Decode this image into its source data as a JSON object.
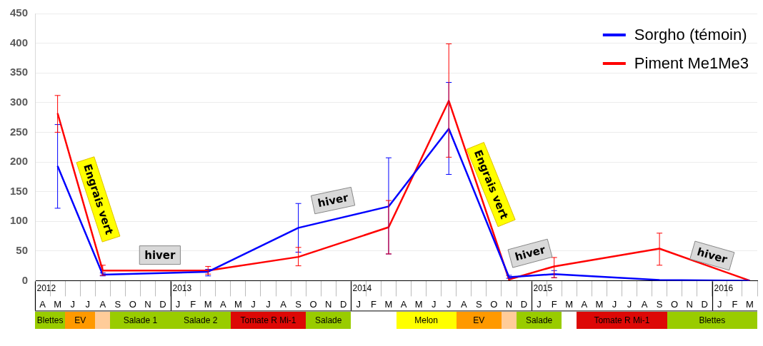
{
  "chart_data": {
    "type": "line",
    "marker": "none",
    "grid": "y",
    "legend": "top right",
    "categories": [
      "A",
      "M",
      "J",
      "J",
      "A",
      "S",
      "O",
      "N",
      "D",
      "J",
      "F",
      "M",
      "A",
      "M",
      "J",
      "J",
      "A",
      "S",
      "O",
      "N",
      "D",
      "J",
      "F",
      "M",
      "A",
      "M",
      "J",
      "J",
      "A",
      "S",
      "O",
      "N",
      "D",
      "J",
      "F",
      "M",
      "A",
      "M",
      "J",
      "J",
      "A",
      "S",
      "O",
      "N",
      "D",
      "J",
      "F",
      "M"
    ],
    "ylim": [
      0,
      450
    ],
    "yticks": [
      0,
      50,
      100,
      150,
      200,
      250,
      300,
      350,
      400,
      450
    ],
    "series": [
      {
        "name": "Sorgho (témoin)",
        "color": "#0000ff",
        "values": [
          null,
          193,
          null,
          null,
          10,
          null,
          null,
          null,
          null,
          null,
          null,
          15,
          null,
          null,
          null,
          null,
          null,
          89,
          null,
          null,
          null,
          null,
          null,
          125,
          null,
          null,
          null,
          256,
          null,
          null,
          null,
          6,
          null,
          null,
          11,
          null,
          null,
          null,
          null,
          null,
          null,
          1,
          null,
          null,
          null,
          null,
          null,
          0
        ],
        "errors": [
          null,
          [
            122,
            263
          ],
          null,
          null,
          [
            8,
            13
          ],
          null,
          null,
          null,
          null,
          null,
          null,
          [
            8,
            19
          ],
          null,
          null,
          null,
          null,
          null,
          [
            48,
            130
          ],
          null,
          null,
          null,
          null,
          null,
          [
            45,
            207
          ],
          null,
          null,
          null,
          [
            179,
            334
          ],
          null,
          null,
          null,
          [
            4,
            9
          ],
          null,
          null,
          [
            5,
            17
          ],
          null,
          null,
          null,
          null,
          null,
          null,
          null,
          null,
          null,
          null,
          null,
          null,
          null
        ]
      },
      {
        "name": "Piment Me1Me3",
        "color": "#ff0000",
        "values": [
          null,
          282,
          null,
          null,
          17,
          null,
          null,
          null,
          null,
          null,
          null,
          17,
          null,
          null,
          null,
          null,
          null,
          40,
          null,
          null,
          null,
          null,
          null,
          90,
          null,
          null,
          null,
          303,
          null,
          null,
          null,
          2,
          null,
          null,
          24,
          null,
          null,
          null,
          null,
          null,
          null,
          54,
          null,
          null,
          null,
          null,
          null,
          0
        ],
        "errors": [
          null,
          [
            250,
            312
          ],
          null,
          null,
          [
            9,
            26
          ],
          null,
          null,
          null,
          null,
          null,
          null,
          [
            11,
            24
          ],
          null,
          null,
          null,
          null,
          null,
          [
            25,
            56
          ],
          null,
          null,
          null,
          null,
          null,
          [
            45,
            135
          ],
          null,
          null,
          null,
          [
            208,
            399
          ],
          null,
          null,
          null,
          null,
          null,
          null,
          [
            5,
            39
          ],
          null,
          null,
          null,
          null,
          null,
          null,
          [
            26,
            80
          ],
          null,
          null,
          null,
          null,
          null,
          null
        ]
      }
    ],
    "annotations": [
      "Engrais vert",
      "hiver",
      "hiver",
      "Engrais vert",
      "hiver",
      "hiver",
      "2012",
      "2013",
      "2014",
      "2015",
      "2016",
      "Blettes",
      "EV",
      "Salade 1",
      "Salade 2",
      "Tomate R Mi-1",
      "Salade",
      "Melon",
      "EV",
      "Salade",
      "Tomate R Mi-1",
      "Blettes"
    ]
  }
}
